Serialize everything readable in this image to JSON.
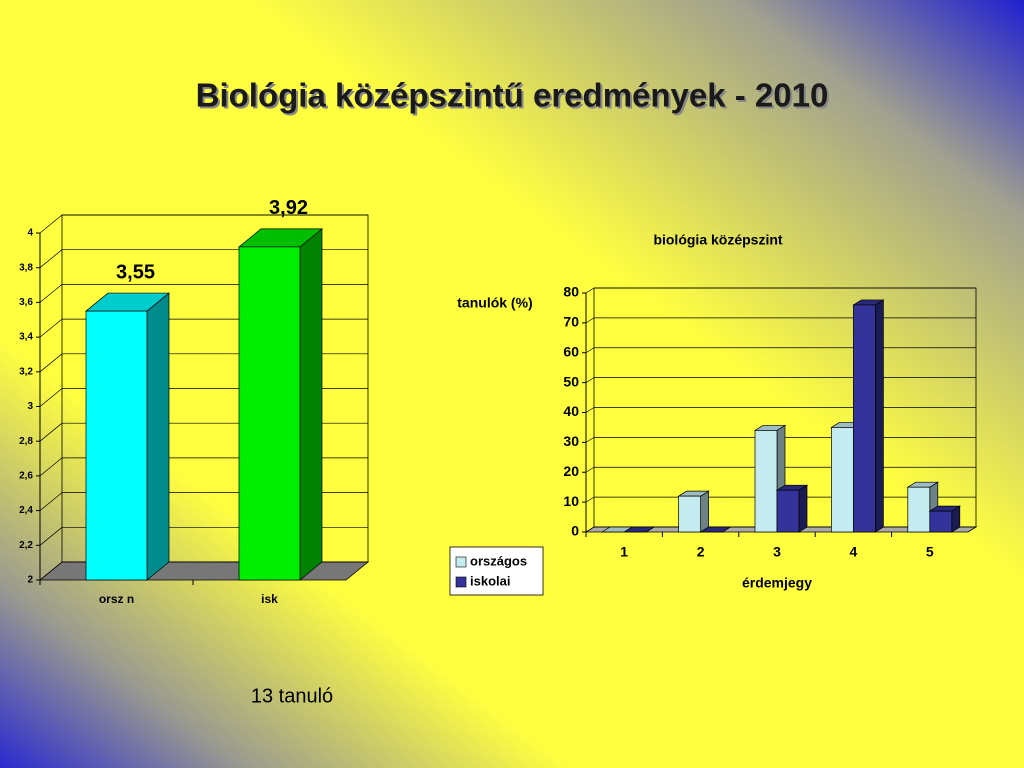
{
  "title": "Biológia középszintű eredmények - 2010",
  "note": "13 tanuló",
  "chart_data": [
    {
      "type": "bar3d",
      "categories": [
        "orsz n",
        "isk"
      ],
      "values": [
        3.55,
        3.92
      ],
      "value_labels": [
        "3,55",
        "3,92"
      ],
      "colors": [
        "#00ffff",
        "#00ee00"
      ],
      "ylim": [
        2,
        4
      ],
      "yticks": [
        2,
        {
          "value": 2.2,
          "label": "2,2"
        },
        {
          "value": 2.4,
          "label": "2,4"
        },
        {
          "value": 2.6,
          "label": "2,6"
        },
        {
          "value": 2.8,
          "label": "2,8"
        },
        3,
        {
          "value": 3.2,
          "label": "3,2"
        },
        {
          "value": 3.4,
          "label": "3,4"
        },
        {
          "value": 3.6,
          "label": "3,6"
        },
        {
          "value": 3.8,
          "label": "3,8"
        },
        4
      ],
      "grid": true
    },
    {
      "type": "bar3d",
      "title": "biológia középszint",
      "ylabel": "tanulók (%)",
      "xlabel": "érdemjegy",
      "categories": [
        "1",
        "2",
        "3",
        "4",
        "5"
      ],
      "series": [
        {
          "name": "országos",
          "color": "#c4ecf0",
          "values": [
            0,
            12,
            34,
            35,
            15
          ]
        },
        {
          "name": "iskolai",
          "color": "#333399",
          "values": [
            0,
            0,
            14,
            76,
            7
          ]
        }
      ],
      "ylim": [
        0,
        80
      ],
      "yticks": [
        0,
        10,
        20,
        30,
        40,
        50,
        60,
        70,
        80
      ],
      "grid": true,
      "legend": "left"
    }
  ]
}
